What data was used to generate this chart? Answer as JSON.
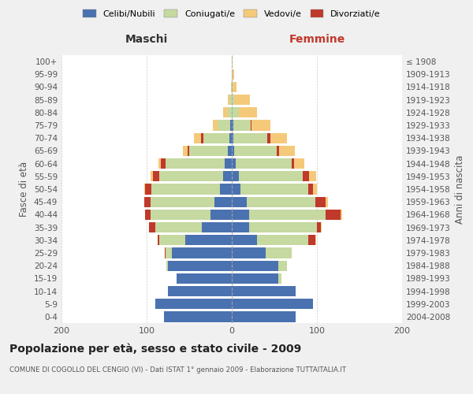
{
  "age_groups": [
    "0-4",
    "5-9",
    "10-14",
    "15-19",
    "20-24",
    "25-29",
    "30-34",
    "35-39",
    "40-44",
    "45-49",
    "50-54",
    "55-59",
    "60-64",
    "65-69",
    "70-74",
    "75-79",
    "80-84",
    "85-89",
    "90-94",
    "95-99",
    "100+"
  ],
  "birth_years": [
    "2004-2008",
    "1999-2003",
    "1994-1998",
    "1989-1993",
    "1984-1988",
    "1979-1983",
    "1974-1978",
    "1969-1973",
    "1964-1968",
    "1959-1963",
    "1954-1958",
    "1949-1953",
    "1944-1948",
    "1939-1943",
    "1934-1938",
    "1929-1933",
    "1924-1928",
    "1919-1923",
    "1914-1918",
    "1909-1913",
    "≤ 1908"
  ],
  "colors": {
    "celibi": "#4a72b0",
    "coniugati": "#c5d9a0",
    "vedovi": "#f5c97a",
    "divorziati": "#c0392b"
  },
  "males": {
    "celibi": [
      80,
      90,
      75,
      65,
      75,
      70,
      55,
      35,
      25,
      20,
      14,
      10,
      8,
      5,
      3,
      2,
      0,
      0,
      0,
      0,
      0
    ],
    "coniugati": [
      0,
      0,
      0,
      0,
      2,
      8,
      30,
      55,
      70,
      75,
      80,
      75,
      70,
      45,
      30,
      15,
      5,
      3,
      1,
      0,
      0
    ],
    "vedovi": [
      0,
      0,
      0,
      0,
      0,
      0,
      0,
      0,
      0,
      0,
      1,
      2,
      3,
      5,
      8,
      5,
      5,
      2,
      0,
      0,
      0
    ],
    "divorziati": [
      0,
      0,
      0,
      0,
      0,
      1,
      2,
      7,
      7,
      8,
      8,
      8,
      5,
      2,
      3,
      0,
      0,
      0,
      0,
      0,
      0
    ]
  },
  "females": {
    "celibi": [
      75,
      95,
      75,
      55,
      55,
      40,
      30,
      20,
      20,
      18,
      10,
      8,
      5,
      3,
      2,
      2,
      0,
      0,
      0,
      0,
      0
    ],
    "coniugati": [
      0,
      0,
      0,
      3,
      10,
      30,
      60,
      80,
      90,
      80,
      80,
      75,
      65,
      50,
      40,
      20,
      8,
      3,
      1,
      1,
      0
    ],
    "vedovi": [
      0,
      0,
      0,
      0,
      0,
      0,
      1,
      1,
      2,
      3,
      5,
      8,
      12,
      18,
      20,
      22,
      22,
      18,
      5,
      2,
      1
    ],
    "divorziati": [
      0,
      0,
      0,
      0,
      0,
      0,
      8,
      5,
      18,
      12,
      5,
      8,
      3,
      3,
      3,
      1,
      0,
      0,
      0,
      0,
      0
    ]
  },
  "title": "Popolazione per età, sesso e stato civile - 2009",
  "subtitle": "COMUNE DI COGOLLO DEL CENGIO (VI) - Dati ISTAT 1° gennaio 2009 - Elaborazione TUTTAITALIA.IT",
  "label_maschi": "Maschi",
  "label_femmine": "Femmine",
  "ylabel_left": "Fasce di età",
  "ylabel_right": "Anni di nascita",
  "xlim": 200,
  "bg_color": "#f0f0f0",
  "plot_bg": "#ffffff",
  "legend_labels": [
    "Celibi/Nubili",
    "Coniugati/e",
    "Vedovi/e",
    "Divorziati/e"
  ],
  "grid_color": "#cccccc",
  "center_line_color": "#aaaaaa"
}
